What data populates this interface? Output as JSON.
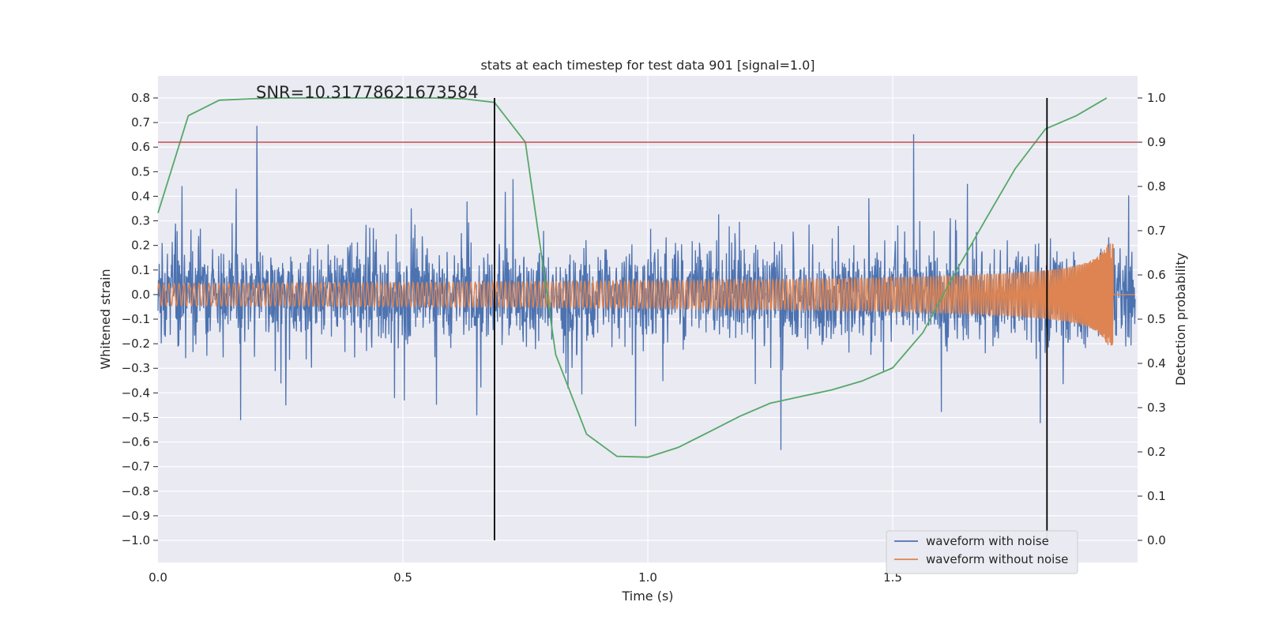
{
  "chart_data": {
    "type": "line",
    "title": "stats at each timestep for test data 901 [signal=1.0]",
    "xlabel": "Time (s)",
    "ylabel": "Whitened strain",
    "y2label": "Detection probability",
    "annotation": "SNR=10.31778621673584",
    "xlim": [
      0.0,
      2.0
    ],
    "ylim": [
      -1.09,
      0.89
    ],
    "y2lim": [
      -0.05,
      1.05
    ],
    "xticks": [
      "0.0",
      "0.5",
      "1.0",
      "1.5"
    ],
    "xtick_values": [
      0.0,
      0.5,
      1.0,
      1.5
    ],
    "yticks": [
      "0.8",
      "0.7",
      "0.6",
      "0.5",
      "0.4",
      "0.3",
      "0.2",
      "0.1",
      "0.0",
      "−0.1",
      "−0.2",
      "−0.3",
      "−0.4",
      "−0.5",
      "−0.6",
      "−0.7",
      "−0.8",
      "−0.9",
      "−1.0"
    ],
    "ytick_values": [
      0.8,
      0.7,
      0.6,
      0.5,
      0.4,
      0.3,
      0.2,
      0.1,
      0.0,
      -0.1,
      -0.2,
      -0.3,
      -0.4,
      -0.5,
      -0.6,
      -0.7,
      -0.8,
      -0.9,
      -1.0
    ],
    "y2ticks": [
      "1.0",
      "0.9",
      "0.8",
      "0.7",
      "0.6",
      "0.5",
      "0.4",
      "0.3",
      "0.2",
      "0.1",
      "0.0"
    ],
    "y2tick_values": [
      1.0,
      0.9,
      0.8,
      0.7,
      0.6,
      0.5,
      0.4,
      0.3,
      0.2,
      0.1,
      0.0
    ],
    "grid": true,
    "legend_placement": "lower-right",
    "series": [
      {
        "name": "waveform with noise",
        "color": "#4c72b0",
        "axis": "left",
        "description": "dense noisy strain, amplitude ~0.3 with spikes to about +/-0.8"
      },
      {
        "name": "waveform without noise",
        "color": "#dd8452",
        "axis": "left",
        "description": "chirp signal, amplitude ~0.05 rising to ~0.27 near 1.95 s"
      },
      {
        "axis": "right",
        "color": "#55a868",
        "x": [
          0.0,
          0.062,
          0.125,
          0.187,
          0.25,
          0.312,
          0.375,
          0.437,
          0.5,
          0.562,
          0.625,
          0.687,
          0.75,
          0.812,
          0.875,
          0.937,
          1.0,
          1.062,
          1.125,
          1.187,
          1.25,
          1.312,
          1.375,
          1.437,
          1.5,
          1.562,
          1.625,
          1.687,
          1.75,
          1.812,
          1.875,
          1.937
        ],
        "y": [
          0.74,
          0.96,
          0.995,
          0.998,
          1.0,
          1.0,
          1.0,
          1.0,
          1.0,
          1.0,
          0.998,
          0.99,
          0.9,
          0.42,
          0.24,
          0.19,
          0.188,
          0.21,
          0.245,
          0.28,
          0.31,
          0.325,
          0.34,
          0.36,
          0.39,
          0.47,
          0.6,
          0.72,
          0.84,
          0.93,
          0.96,
          1.0
        ]
      }
    ],
    "hlines": [
      {
        "y2": 0.9,
        "color": "#c44e52"
      }
    ],
    "vlines": [
      {
        "x": 0.687,
        "color": "#000000"
      },
      {
        "x": 1.815,
        "color": "#000000"
      }
    ]
  }
}
